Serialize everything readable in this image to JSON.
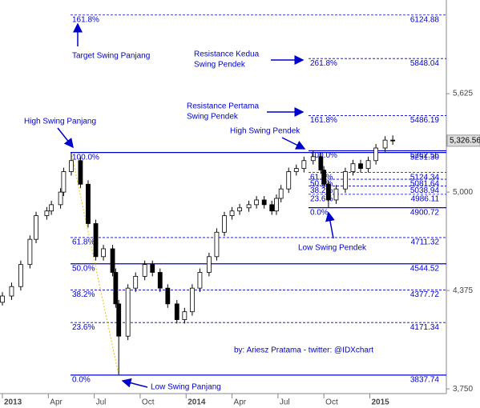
{
  "chart_data": {
    "type": "candlestick",
    "x": [
      0.0,
      0.6,
      1.2,
      1.8,
      2.2,
      2.9,
      3.2,
      3.8,
      4.0,
      4.5,
      5.1,
      5.6,
      6.1,
      6.6,
      7.2,
      7.4,
      7.6,
      8.2,
      8.7,
      9.3,
      9.8,
      10.3,
      10.8,
      11.4,
      11.9,
      12.4,
      12.9,
      13.5,
      14.0,
      14.5,
      15.0,
      15.5,
      16.1,
      16.6,
      17.1,
      17.6,
      17.9,
      18.2,
      18.7,
      19.2,
      19.7,
      20.3,
      20.8,
      21.0,
      21.3,
      21.8,
      22.4,
      22.9,
      23.4,
      23.9,
      24.4,
      25.0,
      25.5
    ],
    "open": [
      4300,
      4340,
      4400,
      4540,
      4700,
      4850,
      4880,
      4920,
      5000,
      5130,
      5200,
      5050,
      4800,
      4590,
      4640,
      4490,
      4290,
      4085,
      4390,
      4465,
      4540,
      4490,
      4390,
      4290,
      4190,
      4240,
      4390,
      4490,
      4590,
      4745,
      4850,
      4880,
      4900,
      4920,
      4950,
      4920,
      4880,
      4960,
      5020,
      5130,
      5150,
      5200,
      5225,
      5140,
      5050,
      4950,
      5020,
      5130,
      5180,
      5150,
      5200,
      5280,
      5330
    ],
    "high": [
      4365,
      4425,
      4565,
      4725,
      4875,
      4905,
      4945,
      5025,
      5155,
      5251.3,
      5225,
      5075,
      4825,
      4665,
      4665,
      4515,
      4315,
      4415,
      4490,
      4565,
      4565,
      4515,
      4415,
      4315,
      4265,
      4415,
      4515,
      4615,
      4770,
      4875,
      4905,
      4925,
      4945,
      4975,
      4975,
      4945,
      4985,
      5045,
      5155,
      5175,
      5225,
      5262.56,
      5250,
      5165,
      5075,
      5045,
      5155,
      5205,
      5205,
      5225,
      5305,
      5355,
      5360
    ],
    "low": [
      4280,
      4315,
      4375,
      4515,
      4675,
      4825,
      4855,
      4895,
      4975,
      5105,
      5025,
      4775,
      4565,
      4565,
      4465,
      4265,
      3837.74,
      4060,
      4365,
      4440,
      4465,
      4365,
      4265,
      4165,
      4165,
      4215,
      4365,
      4465,
      4565,
      4720,
      4825,
      4855,
      4875,
      4895,
      4895,
      4855,
      4855,
      4935,
      4995,
      5105,
      5125,
      5175,
      5115,
      5025,
      4900.72,
      4925,
      4995,
      5105,
      5125,
      5125,
      5175,
      5255,
      5300
    ],
    "close": [
      4340,
      4400,
      4540,
      4700,
      4850,
      4880,
      4920,
      5000,
      5130,
      5200,
      5050,
      4800,
      4590,
      4640,
      4490,
      4290,
      4085,
      4390,
      4465,
      4540,
      4490,
      4390,
      4290,
      4190,
      4240,
      4390,
      4490,
      4590,
      4745,
      4850,
      4880,
      4900,
      4920,
      4950,
      4920,
      4880,
      4960,
      5020,
      5130,
      5150,
      5200,
      5225,
      5140,
      5050,
      4950,
      5020,
      5130,
      5180,
      5150,
      5200,
      5280,
      5330,
      5326.56
    ],
    "up_color": "#ffffff",
    "down_color": "#000000",
    "xlim": [
      0,
      29
    ],
    "xticks": [
      {
        "value": 0,
        "label": "2013"
      },
      {
        "value": 3,
        "label": "Apr"
      },
      {
        "value": 6,
        "label": "Jul"
      },
      {
        "value": 9,
        "label": "Oct"
      },
      {
        "value": 12,
        "label": "2014"
      },
      {
        "value": 15,
        "label": "Apr"
      },
      {
        "value": 18,
        "label": "Jul"
      },
      {
        "value": 21,
        "label": "Oct"
      },
      {
        "value": 24,
        "label": "2015"
      }
    ],
    "ylim": [
      3710,
      6220
    ],
    "yticks": [
      {
        "value": 5625,
        "label": "5,625"
      },
      {
        "value": 5000,
        "label": "5,000"
      },
      {
        "value": 4375,
        "label": "4,375"
      },
      {
        "value": 3750,
        "label": "3,750"
      }
    ],
    "last_price": {
      "value": 5326.56,
      "label": "5,326.56"
    },
    "fib_color": "#0000cc",
    "fib_sets": [
      {
        "levels": [
          {
            "label": "161.8%",
            "value": 6124.88,
            "style": "dashed"
          },
          {
            "label": "100.0%",
            "value": 5251.3,
            "value_label": "5251.30",
            "style": "solid"
          },
          {
            "label": "61.8%",
            "value": 4711.32,
            "style": "dashed"
          },
          {
            "label": "50.0%",
            "value": 4544.52,
            "style": "solid"
          },
          {
            "label": "38.2%",
            "value": 4377.72,
            "style": "dashed"
          },
          {
            "label": "23.6%",
            "value": 4171.34,
            "style": "dashed"
          },
          {
            "label": "0.0%",
            "value": 3837.74,
            "style": "solid"
          }
        ]
      },
      {
        "levels": [
          {
            "label": "261.8%",
            "value": 5848.04,
            "style": "dashed"
          },
          {
            "label": "161.8%",
            "value": 5486.19,
            "style": "dashed"
          },
          {
            "label": "100.0%",
            "value": 5262.56,
            "style": "solid"
          },
          {
            "label": "61.8%",
            "value": 5124.34,
            "style": "dashed"
          },
          {
            "label": "50.0%",
            "value": 5081.64,
            "style": "dashed"
          },
          {
            "label": "38.2%",
            "value": 5038.94,
            "style": "dashed"
          },
          {
            "label": "23.6%",
            "value": 4986.11,
            "style": "dashed"
          },
          {
            "label": "0.0%",
            "value": 4900.72,
            "style": "solid"
          }
        ]
      }
    ],
    "annotations": [
      [
        "Target Swing Panjang"
      ],
      [
        "Resistance Kedua",
        "Swing Pendek"
      ],
      [
        "Resistance Pertama",
        "Swing Pendek"
      ],
      [
        "High Swing Panjang"
      ],
      [
        "High Swing Pendek"
      ],
      [
        "Low Swing Pendek"
      ],
      [
        "Low Swing Panjang"
      ],
      [
        "by: Ariesz Pratama - twitter: @IDXchart"
      ]
    ]
  }
}
